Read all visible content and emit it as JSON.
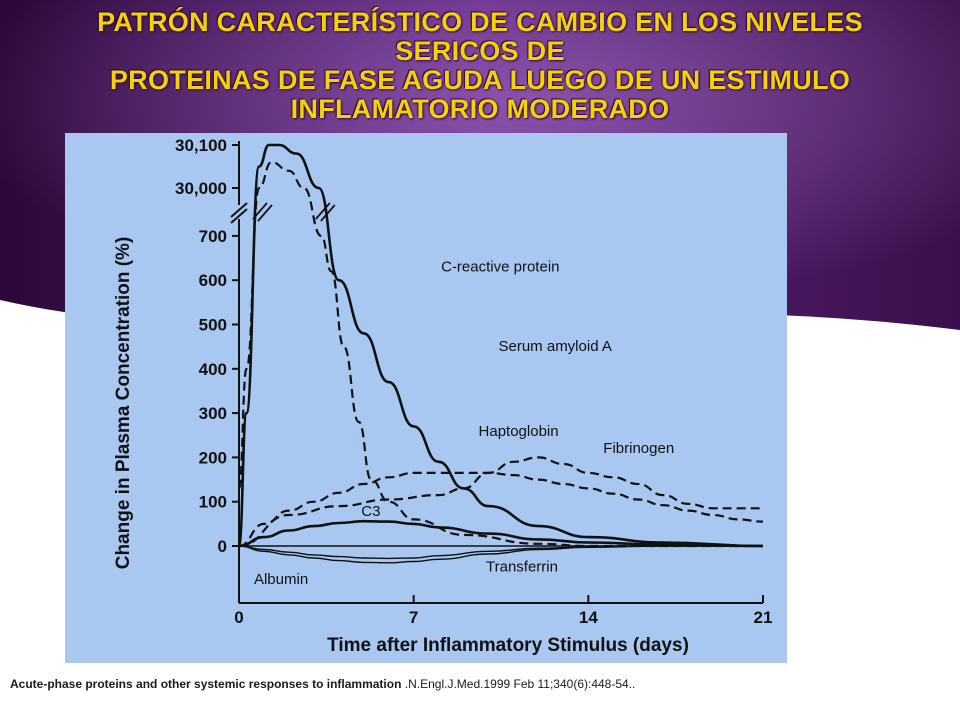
{
  "slide": {
    "title_lines": [
      "PATRÓN CARACTERÍSTICO DE CAMBIO EN LOS NIVELES",
      "SERICOS DE",
      "PROTEINAS DE FASE AGUDA LUEGO DE UN ESTIMULO",
      "INFLAMATORIO  MODERADO"
    ],
    "citation_bold": "Acute-phase proteins and other systemic responses to inflammation",
    "citation_rest": " .N.Engl.J.Med.1999 Feb 11;340(6):448-54..",
    "colors": {
      "title": "#f4d400",
      "background_dark": "#3a0f4a",
      "background_mid": "#7a3a9c",
      "chart_panel": "#a8c8f2"
    }
  },
  "chart_data": {
    "type": "line",
    "title": "",
    "xlabel": "Time after Inflammatory Stimulus (days)",
    "ylabel": "Change in Plasma Concentration (%)",
    "x_ticks": [
      "0",
      "7",
      "14",
      "21"
    ],
    "y_ticks": [
      "0",
      "100",
      "200",
      "300",
      "400",
      "500",
      "600",
      "700",
      "30,000",
      "30,100"
    ],
    "xlim": [
      0,
      21
    ],
    "ylim": [
      -50,
      700
    ],
    "y_axis_break": "700 to 30,000",
    "grid": false,
    "series": [
      {
        "name": "C-reactive protein",
        "style": "solid",
        "x": [
          0,
          0.3,
          0.8,
          1.2,
          1.6,
          2.3,
          3.2,
          4.0,
          5.0,
          6.0,
          7.0,
          8.0,
          9.0,
          10,
          12,
          14,
          17,
          21
        ],
        "y": [
          0,
          300,
          30050,
          30100,
          30100,
          30080,
          30000,
          600,
          480,
          370,
          270,
          190,
          130,
          90,
          45,
          20,
          8,
          0
        ]
      },
      {
        "name": "Serum amyloid A",
        "style": "dashed",
        "x": [
          0,
          0.3,
          0.8,
          1.3,
          2.0,
          2.6,
          3.3,
          3.7,
          4.2,
          4.8,
          5.3,
          6.0,
          7.0,
          9.0,
          12,
          14,
          17,
          21
        ],
        "y": [
          130,
          400,
          30000,
          30060,
          30040,
          30000,
          700,
          620,
          450,
          280,
          150,
          100,
          60,
          25,
          5,
          0,
          0,
          0
        ]
      },
      {
        "name": "Haptoglobin",
        "style": "dashed",
        "x": [
          0,
          1,
          2,
          3,
          4,
          5,
          6,
          7,
          8,
          9,
          10,
          11,
          12,
          13,
          14,
          15,
          16,
          17,
          18,
          19,
          20,
          21
        ],
        "y": [
          0,
          50,
          80,
          100,
          120,
          140,
          155,
          165,
          165,
          165,
          165,
          160,
          150,
          140,
          130,
          118,
          105,
          92,
          80,
          70,
          60,
          55
        ]
      },
      {
        "name": "Fibrinogen",
        "style": "dashed",
        "x": [
          0,
          2,
          4,
          6,
          8,
          9,
          10,
          11,
          12,
          13,
          14,
          15,
          16,
          17,
          18,
          19,
          20,
          21
        ],
        "y": [
          0,
          70,
          90,
          105,
          115,
          130,
          165,
          190,
          200,
          185,
          165,
          155,
          140,
          115,
          95,
          85,
          85,
          85
        ]
      },
      {
        "name": "C3",
        "style": "solid",
        "x": [
          0,
          1,
          2,
          3,
          4,
          5,
          6,
          7,
          8,
          10,
          12,
          14,
          17,
          21
        ],
        "y": [
          0,
          20,
          35,
          45,
          52,
          56,
          55,
          50,
          42,
          28,
          15,
          8,
          3,
          0
        ]
      },
      {
        "name": "Albumin",
        "style": "solid-thin",
        "x": [
          0,
          1,
          2,
          3,
          4,
          5,
          6,
          7,
          8,
          10,
          12,
          14,
          17,
          21
        ],
        "y": [
          0,
          -12,
          -20,
          -27,
          -33,
          -37,
          -38,
          -35,
          -30,
          -18,
          -8,
          -3,
          0,
          0
        ]
      },
      {
        "name": "Transferrin",
        "style": "solid-thin",
        "x": [
          0,
          1,
          2,
          3,
          4,
          5,
          6,
          7,
          8,
          10,
          12,
          14,
          17,
          21
        ],
        "y": [
          0,
          -8,
          -14,
          -20,
          -24,
          -27,
          -28,
          -27,
          -22,
          -12,
          -5,
          -2,
          0,
          0
        ]
      }
    ],
    "labels": [
      {
        "text": "C-reactive protein",
        "series": "C-reactive protein",
        "at_x": 8.1,
        "at_y": 620
      },
      {
        "text": "Serum amyloid A",
        "series": "Serum amyloid A",
        "at_x": 10.4,
        "at_y": 440
      },
      {
        "text": "Haptoglobin",
        "series": "Haptoglobin",
        "at_x": 9.6,
        "at_y": 248
      },
      {
        "text": "Fibrinogen",
        "series": "Fibrinogen",
        "at_x": 14.6,
        "at_y": 210
      },
      {
        "text": "C3",
        "series": "C3",
        "at_x": 4.9,
        "at_y": 68
      },
      {
        "text": "Albumin",
        "series": "Albumin",
        "at_x": 0.6,
        "at_y": -86
      },
      {
        "text": "Transferrin",
        "series": "Transferrin",
        "at_x": 9.9,
        "at_y": -58
      }
    ]
  }
}
